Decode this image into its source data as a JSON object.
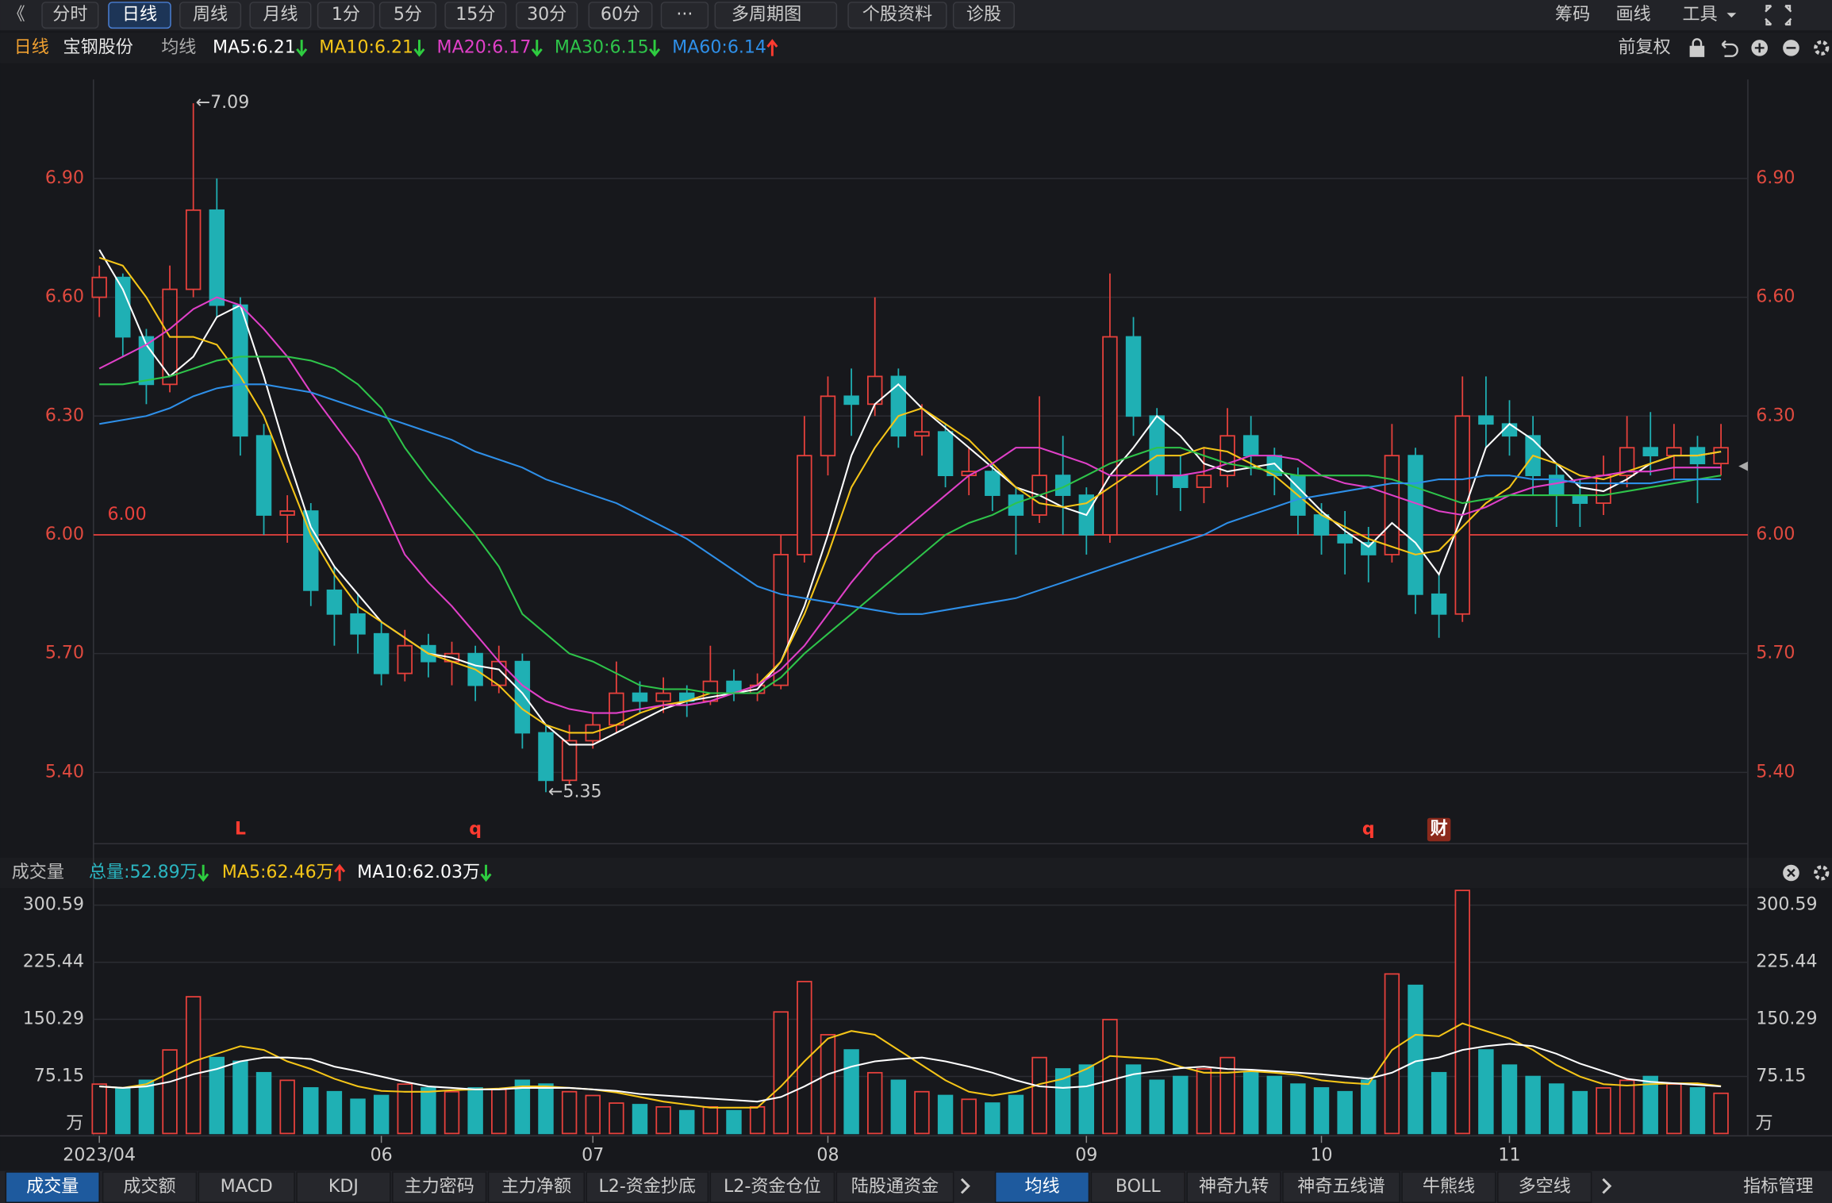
{
  "toolbar": {
    "back": "《",
    "tabs": [
      "分时",
      "日线",
      "周线",
      "月线",
      "1分",
      "5分",
      "15分",
      "30分",
      "60分",
      "···",
      "多周期图",
      "个股资料",
      "诊股"
    ],
    "active": 1,
    "tools": [
      "筹码",
      "画线",
      "工具"
    ]
  },
  "legend": {
    "period": "日线",
    "stock": "宝钢股份",
    "ma_title": "均线",
    "adjust": "前复权"
  },
  "chart_data": [
    {
      "type": "candlestick",
      "ylim": [
        5.22,
        7.15
      ],
      "yticks": [
        {
          "value": 5.4,
          "label": "5.40"
        },
        {
          "value": 5.7,
          "label": "5.70"
        },
        {
          "value": 6,
          "label": "6.00"
        },
        {
          "value": 6.3,
          "label": "6.30"
        },
        {
          "value": 6.6,
          "label": "6.60"
        },
        {
          "value": 6.9,
          "label": "6.90"
        }
      ],
      "ref_line": {
        "value": 6,
        "label": "6.00",
        "color": "#e8413c"
      },
      "up_color": "#e8413c",
      "down_color": "#1fb0b4",
      "ohlc": [
        [
          6.6,
          6.68,
          6.55,
          6.65
        ],
        [
          6.65,
          6.66,
          6.45,
          6.5
        ],
        [
          6.5,
          6.52,
          6.33,
          6.38
        ],
        [
          6.38,
          6.68,
          6.36,
          6.62
        ],
        [
          6.62,
          7.09,
          6.6,
          6.82
        ],
        [
          6.82,
          6.9,
          6.55,
          6.58
        ],
        [
          6.58,
          6.6,
          6.2,
          6.25
        ],
        [
          6.25,
          6.28,
          6.0,
          6.05
        ],
        [
          6.05,
          6.1,
          5.98,
          6.06
        ],
        [
          6.06,
          6.08,
          5.82,
          5.86
        ],
        [
          5.86,
          5.92,
          5.72,
          5.8
        ],
        [
          5.8,
          5.85,
          5.7,
          5.75
        ],
        [
          5.75,
          5.78,
          5.62,
          5.65
        ],
        [
          5.65,
          5.76,
          5.63,
          5.72
        ],
        [
          5.72,
          5.75,
          5.64,
          5.68
        ],
        [
          5.68,
          5.73,
          5.62,
          5.7
        ],
        [
          5.7,
          5.72,
          5.58,
          5.62
        ],
        [
          5.62,
          5.72,
          5.6,
          5.68
        ],
        [
          5.68,
          5.7,
          5.46,
          5.5
        ],
        [
          5.5,
          5.52,
          5.35,
          5.38
        ],
        [
          5.38,
          5.52,
          5.37,
          5.48
        ],
        [
          5.48,
          5.55,
          5.46,
          5.52
        ],
        [
          5.52,
          5.68,
          5.5,
          5.6
        ],
        [
          5.6,
          5.63,
          5.55,
          5.58
        ],
        [
          5.58,
          5.64,
          5.55,
          5.6
        ],
        [
          5.6,
          5.62,
          5.54,
          5.58
        ],
        [
          5.58,
          5.72,
          5.57,
          5.63
        ],
        [
          5.63,
          5.66,
          5.58,
          5.6
        ],
        [
          5.6,
          5.65,
          5.58,
          5.62
        ],
        [
          5.62,
          6.0,
          5.61,
          5.95
        ],
        [
          5.95,
          6.3,
          5.93,
          6.2
        ],
        [
          6.2,
          6.4,
          6.15,
          6.35
        ],
        [
          6.35,
          6.42,
          6.25,
          6.33
        ],
        [
          6.33,
          6.6,
          6.3,
          6.4
        ],
        [
          6.4,
          6.42,
          6.22,
          6.25
        ],
        [
          6.25,
          6.33,
          6.2,
          6.26
        ],
        [
          6.26,
          6.28,
          6.12,
          6.15
        ],
        [
          6.15,
          6.22,
          6.1,
          6.16
        ],
        [
          6.16,
          6.18,
          6.06,
          6.1
        ],
        [
          6.1,
          6.12,
          5.95,
          6.05
        ],
        [
          6.05,
          6.35,
          6.03,
          6.15
        ],
        [
          6.15,
          6.25,
          6.0,
          6.1
        ],
        [
          6.1,
          6.12,
          5.95,
          6.0
        ],
        [
          6.0,
          6.66,
          5.98,
          6.5
        ],
        [
          6.5,
          6.55,
          6.25,
          6.3
        ],
        [
          6.3,
          6.32,
          6.1,
          6.15
        ],
        [
          6.15,
          6.2,
          6.06,
          6.12
        ],
        [
          6.12,
          6.22,
          6.08,
          6.15
        ],
        [
          6.15,
          6.32,
          6.12,
          6.25
        ],
        [
          6.25,
          6.3,
          6.15,
          6.2
        ],
        [
          6.2,
          6.22,
          6.1,
          6.15
        ],
        [
          6.15,
          6.17,
          6.0,
          6.05
        ],
        [
          6.05,
          6.08,
          5.95,
          6.0
        ],
        [
          6.0,
          6.06,
          5.9,
          5.98
        ],
        [
          5.98,
          6.02,
          5.88,
          5.95
        ],
        [
          5.95,
          6.28,
          5.93,
          6.2
        ],
        [
          6.2,
          6.22,
          5.8,
          5.85
        ],
        [
          5.85,
          5.9,
          5.74,
          5.8
        ],
        [
          5.8,
          6.4,
          5.78,
          6.3
        ],
        [
          6.3,
          6.4,
          6.22,
          6.28
        ],
        [
          6.28,
          6.34,
          6.2,
          6.25
        ],
        [
          6.25,
          6.3,
          6.1,
          6.15
        ],
        [
          6.15,
          6.18,
          6.02,
          6.1
        ],
        [
          6.1,
          6.14,
          6.02,
          6.08
        ],
        [
          6.08,
          6.2,
          6.05,
          6.15
        ],
        [
          6.15,
          6.3,
          6.12,
          6.22
        ],
        [
          6.22,
          6.31,
          6.15,
          6.2
        ],
        [
          6.2,
          6.28,
          6.14,
          6.22
        ],
        [
          6.22,
          6.25,
          6.08,
          6.18
        ],
        [
          6.18,
          6.28,
          6.15,
          6.22
        ]
      ],
      "series": [
        {
          "label": "MA5:6.21",
          "color": "#ffffff",
          "trend": "down",
          "values": [
            6.72,
            6.62,
            6.48,
            6.4,
            6.45,
            6.55,
            6.58,
            6.4,
            6.2,
            6.02,
            5.92,
            5.85,
            5.78,
            5.74,
            5.7,
            5.69,
            5.67,
            5.66,
            5.6,
            5.52,
            5.47,
            5.47,
            5.5,
            5.53,
            5.56,
            5.58,
            5.59,
            5.6,
            5.61,
            5.68,
            5.82,
            6.0,
            6.2,
            6.33,
            6.38,
            6.32,
            6.27,
            6.22,
            6.17,
            6.12,
            6.1,
            6.07,
            6.05,
            6.15,
            6.22,
            6.3,
            6.25,
            6.18,
            6.16,
            6.17,
            6.18,
            6.12,
            6.06,
            6.01,
            5.97,
            6.03,
            5.98,
            5.9,
            6.05,
            6.22,
            6.28,
            6.24,
            6.18,
            6.12,
            6.11,
            6.14,
            6.18,
            6.2,
            6.2,
            6.21
          ]
        },
        {
          "label": "MA10:6.21",
          "color": "#f5c518",
          "trend": "down",
          "values": [
            6.7,
            6.68,
            6.6,
            6.5,
            6.5,
            6.48,
            6.4,
            6.3,
            6.15,
            6.0,
            5.9,
            5.82,
            5.78,
            5.74,
            5.7,
            5.68,
            5.66,
            5.62,
            5.56,
            5.52,
            5.5,
            5.5,
            5.52,
            5.55,
            5.57,
            5.58,
            5.6,
            5.6,
            5.62,
            5.68,
            5.8,
            5.95,
            6.12,
            6.22,
            6.3,
            6.32,
            6.28,
            6.24,
            6.18,
            6.12,
            6.08,
            6.07,
            6.08,
            6.12,
            6.16,
            6.2,
            6.2,
            6.22,
            6.21,
            6.18,
            6.15,
            6.1,
            6.05,
            6.02,
            5.99,
            5.97,
            5.95,
            5.96,
            6.02,
            6.08,
            6.12,
            6.2,
            6.18,
            6.15,
            6.14,
            6.16,
            6.18,
            6.2,
            6.2,
            6.21
          ]
        },
        {
          "label": "MA20:6.17",
          "color": "#e040c8",
          "trend": "down",
          "values": [
            6.42,
            6.45,
            6.48,
            6.52,
            6.57,
            6.6,
            6.58,
            6.52,
            6.45,
            6.36,
            6.28,
            6.2,
            6.08,
            5.95,
            5.88,
            5.82,
            5.75,
            5.68,
            5.62,
            5.58,
            5.56,
            5.55,
            5.55,
            5.56,
            5.57,
            5.57,
            5.58,
            5.6,
            5.62,
            5.66,
            5.72,
            5.8,
            5.88,
            5.95,
            6.0,
            6.05,
            6.1,
            6.15,
            6.18,
            6.22,
            6.22,
            6.2,
            6.18,
            6.15,
            6.15,
            6.15,
            6.15,
            6.16,
            6.18,
            6.2,
            6.2,
            6.19,
            6.15,
            6.13,
            6.12,
            6.1,
            6.08,
            6.06,
            6.05,
            6.07,
            6.1,
            6.12,
            6.13,
            6.14,
            6.15,
            6.16,
            6.16,
            6.17,
            6.17,
            6.17
          ]
        },
        {
          "label": "MA30:6.15",
          "color": "#2ec44a",
          "trend": "down",
          "values": [
            6.38,
            6.38,
            6.39,
            6.4,
            6.42,
            6.44,
            6.45,
            6.45,
            6.45,
            6.44,
            6.42,
            6.38,
            6.32,
            6.22,
            6.14,
            6.07,
            6.0,
            5.92,
            5.8,
            5.75,
            5.7,
            5.68,
            5.65,
            5.62,
            5.61,
            5.61,
            5.6,
            5.6,
            5.6,
            5.64,
            5.7,
            5.75,
            5.8,
            5.85,
            5.9,
            5.95,
            6.0,
            6.03,
            6.05,
            6.08,
            6.1,
            6.12,
            6.15,
            6.18,
            6.2,
            6.22,
            6.22,
            6.2,
            6.18,
            6.17,
            6.16,
            6.15,
            6.15,
            6.15,
            6.15,
            6.14,
            6.12,
            6.1,
            6.08,
            6.09,
            6.1,
            6.1,
            6.1,
            6.1,
            6.1,
            6.11,
            6.12,
            6.13,
            6.14,
            6.15
          ]
        },
        {
          "label": "MA60:6.14",
          "color": "#2e8fe8",
          "trend": "up",
          "values": [
            6.28,
            6.29,
            6.3,
            6.32,
            6.35,
            6.37,
            6.38,
            6.38,
            6.37,
            6.36,
            6.34,
            6.32,
            6.3,
            6.28,
            6.26,
            6.24,
            6.21,
            6.19,
            6.17,
            6.14,
            6.12,
            6.1,
            6.08,
            6.05,
            6.02,
            5.99,
            5.95,
            5.91,
            5.87,
            5.85,
            5.84,
            5.83,
            5.82,
            5.81,
            5.8,
            5.8,
            5.81,
            5.82,
            5.83,
            5.84,
            5.86,
            5.88,
            5.9,
            5.92,
            5.94,
            5.96,
            5.98,
            6.0,
            6.03,
            6.05,
            6.07,
            6.09,
            6.1,
            6.11,
            6.12,
            6.13,
            6.13,
            6.14,
            6.14,
            6.15,
            6.15,
            6.14,
            6.14,
            6.13,
            6.13,
            6.13,
            6.13,
            6.14,
            6.14,
            6.14
          ]
        }
      ],
      "annotations": [
        {
          "text": "←7.09",
          "index": 4,
          "anchor": "high"
        },
        {
          "text": "←5.35",
          "index": 19,
          "anchor": "low"
        }
      ],
      "markers": [
        {
          "text": "L",
          "index": 6
        },
        {
          "text": "q",
          "index": 16
        },
        {
          "text": "q",
          "index": 54
        },
        {
          "text": "财",
          "index": 57,
          "boxed": true
        }
      ]
    },
    {
      "type": "bar",
      "title": "成交量",
      "total": "总量:52.89万",
      "total_trend": "down",
      "unit": "万",
      "ylim": [
        0,
        320
      ],
      "yticks": [
        300.59,
        225.44,
        150.29,
        75.15
      ],
      "categories": [
        "2023/04",
        null,
        null,
        null,
        null,
        null,
        null,
        null,
        null,
        null,
        null,
        null,
        "06",
        null,
        null,
        null,
        null,
        null,
        null,
        null,
        null,
        "07",
        null,
        null,
        null,
        null,
        null,
        null,
        null,
        null,
        null,
        "08",
        null,
        null,
        null,
        null,
        null,
        null,
        null,
        null,
        null,
        null,
        "09",
        null,
        null,
        null,
        null,
        null,
        null,
        null,
        null,
        null,
        "10",
        null,
        null,
        null,
        null,
        null,
        null,
        null,
        "11",
        null,
        null,
        null,
        null,
        null,
        null,
        null,
        null,
        null
      ],
      "values": [
        65,
        60,
        70,
        110,
        180,
        100,
        95,
        80,
        70,
        60,
        55,
        45,
        50,
        65,
        60,
        55,
        60,
        58,
        70,
        65,
        55,
        50,
        40,
        38,
        35,
        30,
        35,
        30,
        35,
        160,
        200,
        130,
        110,
        80,
        70,
        55,
        50,
        45,
        40,
        50,
        100,
        85,
        90,
        150,
        90,
        70,
        75,
        85,
        100,
        80,
        75,
        65,
        60,
        55,
        70,
        210,
        195,
        80,
        320,
        110,
        90,
        75,
        65,
        55,
        60,
        70,
        75,
        65,
        60,
        52.89
      ],
      "series": [
        {
          "label": "MA5:62.46万",
          "color": "#f5c518",
          "trend": "up",
          "values": [
            62,
            60,
            65,
            80,
            95,
            105,
            115,
            110,
            95,
            85,
            72,
            62,
            56,
            55,
            55,
            57,
            58,
            59,
            62,
            62,
            60,
            58,
            54,
            48,
            42,
            38,
            34,
            34,
            34,
            62,
            95,
            125,
            135,
            130,
            110,
            90,
            70,
            55,
            50,
            55,
            65,
            72,
            85,
            102,
            100,
            98,
            88,
            80,
            80,
            82,
            80,
            77,
            70,
            67,
            65,
            110,
            130,
            128,
            145,
            135,
            125,
            110,
            90,
            75,
            65,
            63,
            65,
            66,
            66,
            62.46
          ]
        },
        {
          "label": "MA10:62.03万",
          "color": "#ffffff",
          "trend": "down",
          "values": [
            62,
            60,
            62,
            68,
            78,
            85,
            95,
            100,
            100,
            98,
            88,
            82,
            75,
            68,
            62,
            60,
            58,
            58,
            60,
            60,
            60,
            58,
            56,
            52,
            50,
            48,
            46,
            44,
            42,
            48,
            62,
            78,
            88,
            95,
            98,
            100,
            95,
            88,
            80,
            70,
            62,
            60,
            62,
            70,
            78,
            82,
            86,
            88,
            85,
            84,
            82,
            80,
            78,
            75,
            72,
            80,
            95,
            100,
            110,
            115,
            118,
            115,
            105,
            92,
            82,
            72,
            68,
            66,
            64,
            62.03
          ]
        }
      ]
    }
  ],
  "bottom_tabs": {
    "left": [
      "成交量",
      "成交额",
      "MACD",
      "KDJ",
      "主力密码",
      "主力净额",
      "L2-资金抄底",
      "L2-资金仓位",
      "陆股通资金"
    ],
    "right": [
      "均线",
      "BOLL",
      "神奇九转",
      "神奇五线谱",
      "牛熊线",
      "多空线"
    ],
    "more": "指标管理",
    "left_active": 0,
    "right_active": 0
  }
}
